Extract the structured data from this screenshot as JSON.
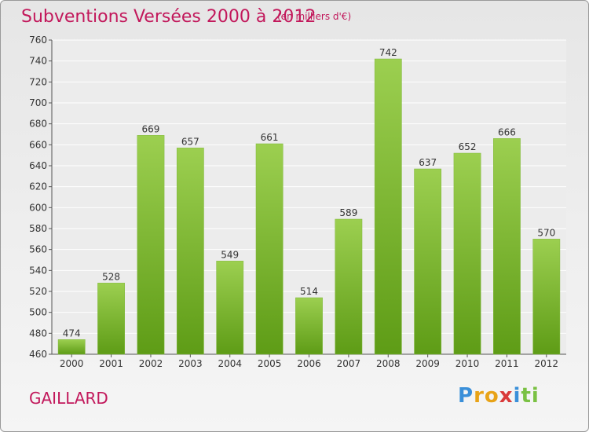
{
  "header": {
    "title": "Subventions Versées 2000 à 2012",
    "unit": "(en milliers d'€)"
  },
  "footer": {
    "city": "GAILLARD",
    "logo": "Proxiti"
  },
  "colors": {
    "title": "#c2185b",
    "bar_top": "#9ccf50",
    "bar_bottom": "#5e9c16",
    "grid": "#ffffff",
    "background": "#ececec"
  },
  "chart_data": {
    "type": "bar",
    "title": "Subventions Versées 2000 à 2012",
    "subtitle": "(en milliers d'€)",
    "xlabel": "",
    "ylabel": "",
    "categories": [
      "2000",
      "2001",
      "2002",
      "2003",
      "2004",
      "2005",
      "2006",
      "2007",
      "2008",
      "2009",
      "2010",
      "2011",
      "2012"
    ],
    "values": [
      474,
      528,
      669,
      657,
      549,
      661,
      514,
      589,
      742,
      637,
      652,
      666,
      570
    ],
    "ylim": [
      460,
      760
    ],
    "yticks": [
      460,
      480,
      500,
      520,
      540,
      560,
      580,
      600,
      620,
      640,
      660,
      680,
      700,
      720,
      740,
      760
    ],
    "grid": true,
    "legend": "none"
  }
}
